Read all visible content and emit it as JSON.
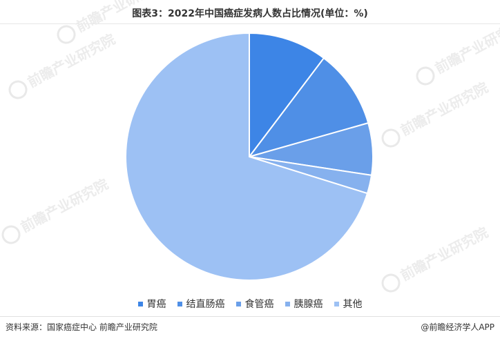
{
  "title": "图表3：2022年中国癌症发病人数占比情况(单位：%)",
  "chart_data": {
    "type": "pie",
    "categories": [
      "胃癌",
      "结直肠癌",
      "食管癌",
      "胰腺癌",
      "其他"
    ],
    "values": [
      10.3,
      10.3,
      6.8,
      2.4,
      70.2
    ],
    "colors": [
      "#3d85e6",
      "#4f8fe6",
      "#6a9fe9",
      "#86b1ee",
      "#9dc1f4"
    ],
    "legend_position": "bottom"
  },
  "footer": {
    "source": "资料来源：国家癌症中心 前瞻产业研究院",
    "brand": "@前瞻经济学人APP"
  },
  "watermark": {
    "text": "前瞻产业研究院"
  }
}
